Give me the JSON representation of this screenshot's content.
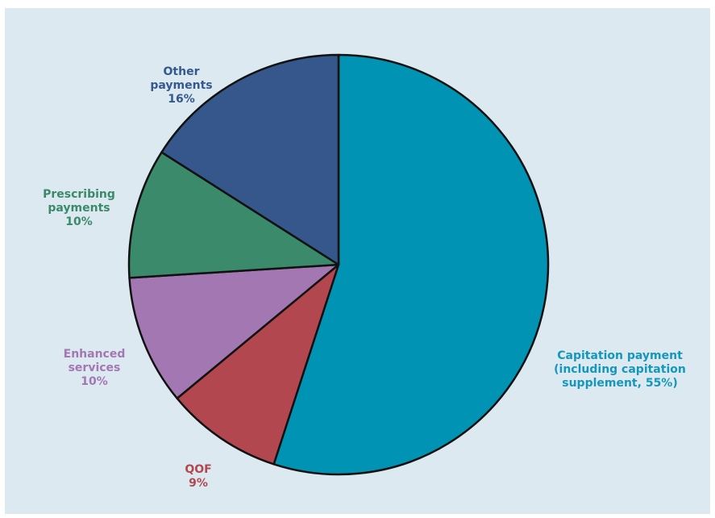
{
  "chart_data": {
    "type": "pie",
    "title": "",
    "slices": [
      {
        "lines": [
          "Capitation payment",
          "(including capitation",
          "supplement, 55%)"
        ],
        "value": 55,
        "color": "#0093b4",
        "label_color": "#1497bd"
      },
      {
        "lines": [
          "QOF",
          "9%"
        ],
        "value": 9,
        "color": "#b3474f",
        "label_color": "#b3474f"
      },
      {
        "lines": [
          "Enhanced",
          "services",
          "10%"
        ],
        "value": 10,
        "color": "#a277b2",
        "label_color": "#a277b2"
      },
      {
        "lines": [
          "Prescribing",
          "payments",
          "10%"
        ],
        "value": 10,
        "color": "#3b8a6c",
        "label_color": "#3a8a69"
      },
      {
        "lines": [
          "Other",
          "payments",
          "16%"
        ],
        "value": 16,
        "color": "#36578c",
        "label_color": "#34598f"
      }
    ]
  }
}
